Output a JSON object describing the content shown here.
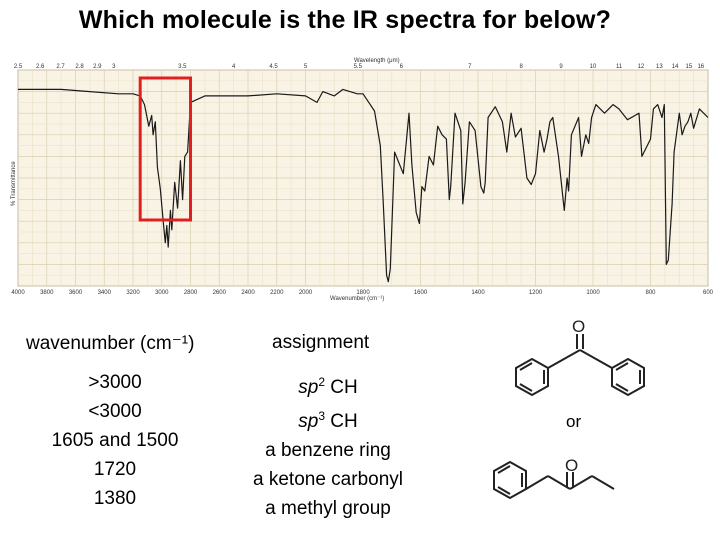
{
  "title": "Which molecule is the IR spectra for below?",
  "chart_data": {
    "type": "line",
    "title": "",
    "xlabel": "Wavenumber (cm⁻¹)",
    "x2label": "Wavelength (μm)",
    "ylabel": "% Transmittance",
    "xlim": [
      4000,
      600
    ],
    "ylim": [
      0,
      100
    ],
    "x_ticks": [
      "4000",
      "3800",
      "3600",
      "3400",
      "3200",
      "3000",
      "2800",
      "2600",
      "2400",
      "2200",
      "2000",
      "1800",
      "1600",
      "1400",
      "1200",
      "1000",
      "800",
      "600"
    ],
    "top_ticks": [
      "2.5",
      "2.6",
      "2.7",
      "2.8",
      "2.9",
      "3",
      "3.5",
      "4",
      "4.5",
      "5",
      "5.5",
      "6",
      "7",
      "8",
      "9",
      "10",
      "11",
      "12",
      "13",
      "14",
      "15",
      "16"
    ],
    "highlight_range": [
      3150,
      2800
    ],
    "series": [
      {
        "x": [
          4000,
          3700,
          3500,
          3300,
          3200,
          3150,
          3120,
          3090,
          3070,
          3060,
          3045,
          3030,
          3010,
          2990,
          2975,
          2965,
          2955,
          2940,
          2930,
          2910,
          2890,
          2870,
          2855,
          2840,
          2820,
          2800,
          2700,
          2600,
          2400,
          2200,
          2000,
          1960,
          1940,
          1900,
          1870,
          1820,
          1800,
          1780,
          1760,
          1740,
          1730,
          1718,
          1712,
          1705,
          1690,
          1660,
          1640,
          1630,
          1615,
          1604,
          1595,
          1585,
          1570,
          1555,
          1540,
          1525,
          1510,
          1500,
          1495,
          1480,
          1460,
          1453,
          1445,
          1430,
          1410,
          1390,
          1380,
          1375,
          1365,
          1340,
          1315,
          1300,
          1285,
          1270,
          1250,
          1230,
          1215,
          1200,
          1185,
          1170,
          1160,
          1150,
          1140,
          1120,
          1100,
          1090,
          1085,
          1075,
          1050,
          1040,
          1025,
          1015,
          1005,
          990,
          960,
          930,
          910,
          880,
          840,
          830,
          800,
          790,
          775,
          760,
          752,
          745,
          738,
          725,
          718,
          700,
          690,
          680,
          670,
          660,
          650,
          630,
          600
        ],
        "values": [
          91,
          91,
          90,
          89,
          89,
          88,
          84,
          74,
          79,
          70,
          76,
          55,
          45,
          30,
          20,
          28,
          18,
          35,
          26,
          48,
          36,
          58,
          40,
          60,
          62,
          85,
          88,
          88,
          88,
          89,
          88,
          85,
          90,
          88,
          91,
          89,
          89,
          85,
          81,
          65,
          40,
          5,
          2,
          8,
          62,
          52,
          80,
          56,
          34,
          29,
          46,
          44,
          60,
          56,
          74,
          70,
          68,
          40,
          46,
          80,
          72,
          38,
          48,
          76,
          72,
          46,
          43,
          48,
          78,
          83,
          76,
          62,
          80,
          69,
          73,
          50,
          47,
          52,
          72,
          62,
          68,
          76,
          78,
          60,
          35,
          50,
          44,
          70,
          78,
          60,
          70,
          66,
          78,
          84,
          80,
          84,
          82,
          77,
          80,
          60,
          68,
          82,
          84,
          78,
          84,
          10,
          12,
          38,
          62,
          80,
          70,
          74,
          76,
          80,
          73,
          82,
          78
        ]
      }
    ]
  },
  "table": {
    "header_wavenumber": "wavenumber (cm⁻¹)",
    "header_assignment": "assignment",
    "rows": [
      {
        "wavenumber": ">3000",
        "assign_italic": "sp",
        "assign_sup": "2",
        "assign_rest": " CH"
      },
      {
        "wavenumber": "<3000",
        "assign_italic": "sp",
        "assign_sup": "3",
        "assign_rest": " CH"
      },
      {
        "wavenumber": "1605 and 1500",
        "assign_full": "a benzene ring"
      },
      {
        "wavenumber": "1720",
        "assign_full": "a ketone carbonyl"
      },
      {
        "wavenumber": "1380",
        "assign_full": "a methyl group"
      }
    ]
  },
  "molecules": {
    "top_label": "O",
    "bottom_label": "O",
    "or_label": "or"
  }
}
